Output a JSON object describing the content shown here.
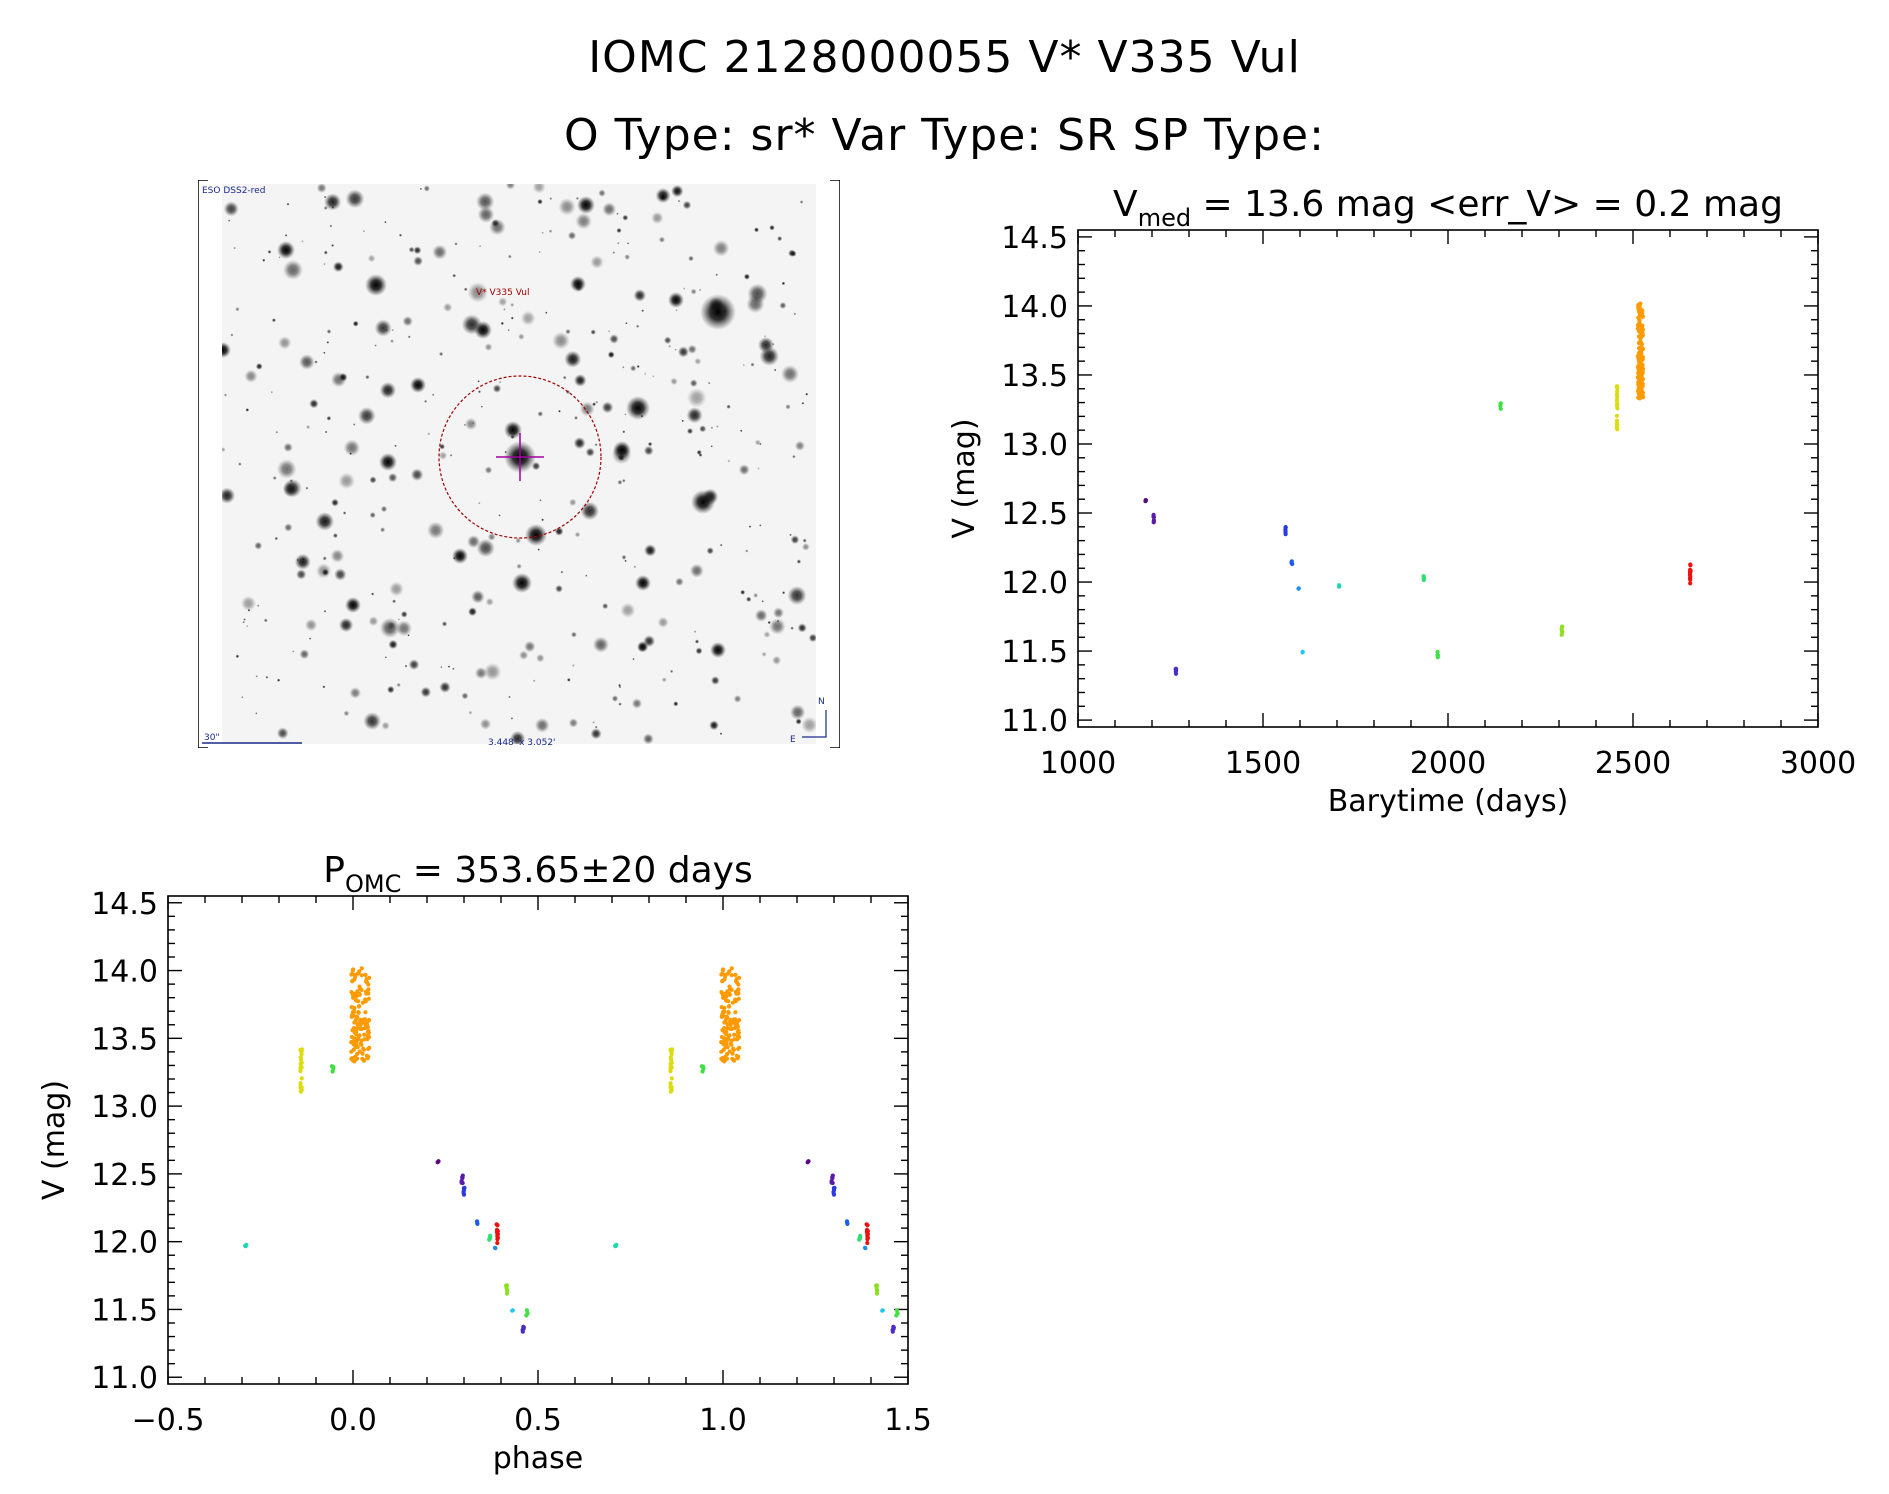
{
  "header": {
    "title_line1": "IOMC 2128000055    V* V335 Vul",
    "title_line2": "O Type: sr*  Var Type: SR  SP Type:"
  },
  "finder_chart": {
    "survey_label": "ESO DSS2-red",
    "target_label": "V* V335 Vul",
    "scale_label": "30\"",
    "fov_label": "3.448' x 3.052'",
    "north_label": "N",
    "east_label": "E",
    "marker_color": "#a00000",
    "cross_color": "#a000a0"
  },
  "chart_data": [
    {
      "type": "scatter",
      "name": "light-curve",
      "title_main": "V",
      "title_sub": "med",
      "title_rest": " = 13.6 mag <err_V> = 0.2 mag",
      "xlabel": "Barytime (days)",
      "ylabel": "V (mag)",
      "xlim": [
        1000,
        3000
      ],
      "ylim": [
        14.55,
        10.95
      ],
      "xticks": [
        1000,
        1500,
        2000,
        2500,
        3000
      ],
      "yticks": [
        11.0,
        11.5,
        12.0,
        12.5,
        13.0,
        13.5,
        14.0,
        14.5
      ],
      "groups": [
        {
          "t": 1183,
          "vmin": 12.58,
          "vmax": 12.6,
          "n": 3,
          "phase": 0.23,
          "color": "#5a0a7a"
        },
        {
          "t": 1205,
          "vmin": 12.41,
          "vmax": 12.49,
          "n": 6,
          "phase": 0.295,
          "color": "#5a1aa8"
        },
        {
          "t": 1265,
          "vmin": 11.32,
          "vmax": 11.39,
          "n": 6,
          "phase": 0.46,
          "color": "#4b2cc8"
        },
        {
          "t": 1561,
          "vmin": 12.33,
          "vmax": 12.42,
          "n": 6,
          "phase": 0.3,
          "color": "#2a3ae0"
        },
        {
          "t": 1578,
          "vmin": 12.13,
          "vmax": 12.15,
          "n": 3,
          "phase": 0.335,
          "color": "#1c5cf0"
        },
        {
          "t": 1596,
          "vmin": 11.95,
          "vmax": 11.96,
          "n": 2,
          "phase": 0.385,
          "color": "#1f8cf0"
        },
        {
          "t": 1607,
          "vmin": 11.49,
          "vmax": 11.5,
          "n": 2,
          "phase": 0.43,
          "color": "#22c8ee"
        },
        {
          "t": 1705,
          "vmin": 11.96,
          "vmax": 11.98,
          "n": 3,
          "phase": -0.29,
          "color": "#20d8b0"
        },
        {
          "t": 1935,
          "vmin": 12.0,
          "vmax": 12.07,
          "n": 5,
          "phase": 0.37,
          "color": "#2ee070"
        },
        {
          "t": 1972,
          "vmin": 11.45,
          "vmax": 11.5,
          "n": 5,
          "phase": 0.47,
          "color": "#44e044"
        },
        {
          "t": 2142,
          "vmin": 13.25,
          "vmax": 13.32,
          "n": 4,
          "phase": -0.055,
          "color": "#3ee03e"
        },
        {
          "t": 2308,
          "vmin": 11.61,
          "vmax": 11.68,
          "n": 6,
          "phase": 0.415,
          "color": "#8ce020"
        },
        {
          "t": 2457,
          "vmin": 13.08,
          "vmax": 13.45,
          "n": 22,
          "phase": -0.14,
          "color": "#dcdc10"
        },
        {
          "t": 2520,
          "vmin": 13.33,
          "vmax": 14.02,
          "n": 140,
          "phase": 0.02,
          "color": "#ff9a00"
        },
        {
          "t": 2655,
          "vmin": 11.98,
          "vmax": 12.13,
          "n": 14,
          "phase": 0.39,
          "color": "#f01010"
        }
      ]
    },
    {
      "type": "scatter",
      "name": "phased-curve",
      "title_main": "P",
      "title_sub": "OMC",
      "title_rest": " = 353.65±20 days",
      "xlabel": "phase",
      "ylabel": "V (mag)",
      "xlim": [
        -0.5,
        1.5
      ],
      "ylim": [
        14.55,
        10.95
      ],
      "xticks": [
        -0.5,
        0.0,
        0.5,
        1.0,
        1.5
      ],
      "xticklabels": [
        "−0.5",
        "0.0",
        "0.5",
        "1.0",
        "1.5"
      ],
      "yticks": [
        11.0,
        11.5,
        12.0,
        12.5,
        13.0,
        13.5,
        14.0,
        14.5
      ]
    }
  ]
}
